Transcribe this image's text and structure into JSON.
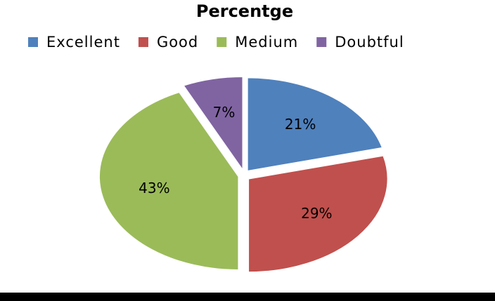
{
  "chart_data": {
    "type": "pie",
    "title": "Percentge",
    "categories": [
      "Excellent",
      "Good",
      "Medium",
      "Doubtful"
    ],
    "values": [
      21,
      29,
      43,
      7
    ],
    "value_labels": [
      "21%",
      "29%",
      "43%",
      "7%"
    ],
    "colors": [
      "#4f81bd",
      "#c0504d",
      "#9bbb59",
      "#8064a2"
    ],
    "legend": "top"
  }
}
